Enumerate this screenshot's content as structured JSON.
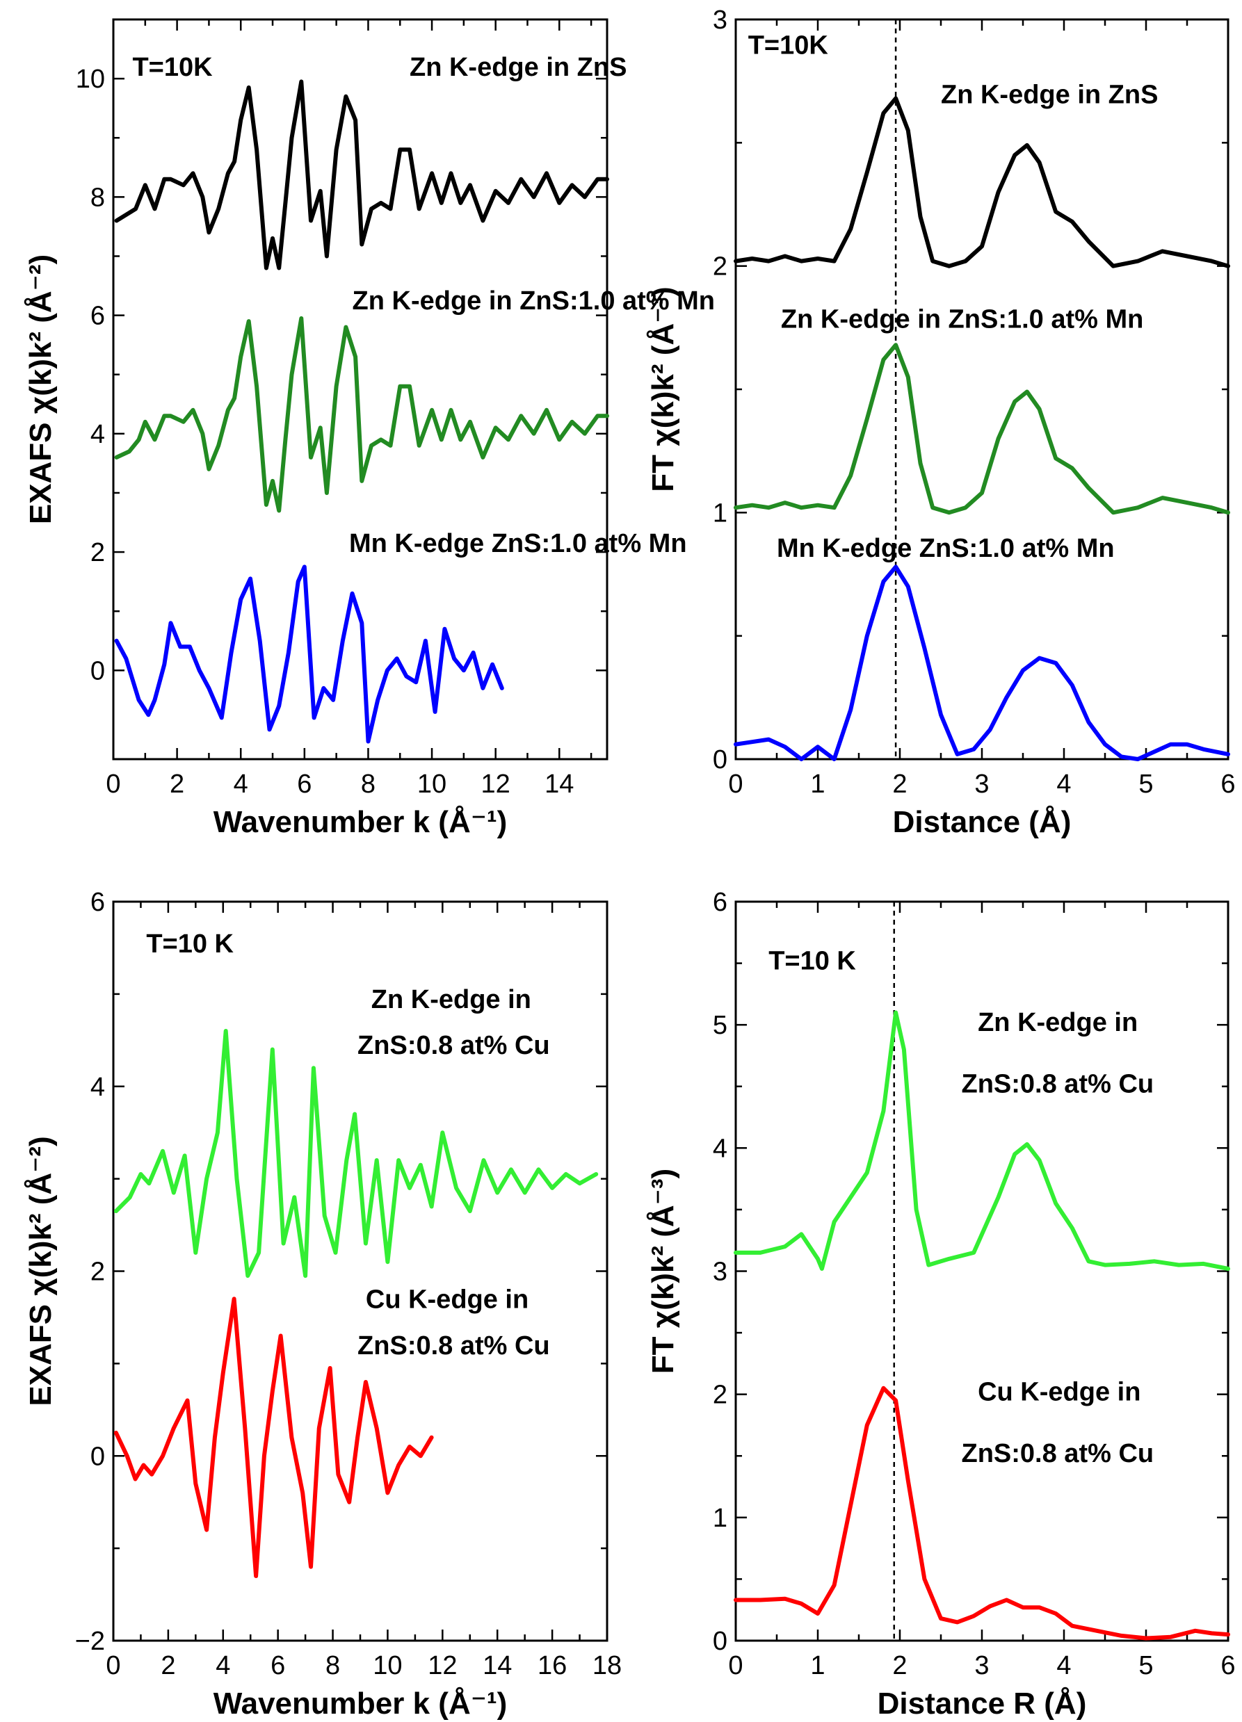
{
  "chart_data": [
    {
      "id": "a",
      "type": "line",
      "xlabel": "Wavenumber k (Å⁻¹)",
      "ylabel": "EXAFS χ(k)k² (Å⁻²)",
      "xlim": [
        0,
        15.5
      ],
      "ylim": [
        -1.5,
        11
      ],
      "xticks": [
        0,
        2,
        4,
        6,
        8,
        10,
        12,
        14
      ],
      "yticks": [
        0,
        2,
        4,
        6,
        8,
        10
      ],
      "guide_x": null,
      "annotations": [
        {
          "text": "T=10K",
          "x": 0.6,
          "y": 10.05
        },
        {
          "text": "Zn K-edge in ZnS",
          "x": 9.3,
          "y": 10.05
        },
        {
          "text": "Zn K-edge in ZnS:1.0 at% Mn",
          "x": 7.5,
          "y": 6.1
        },
        {
          "text": "Mn K-edge ZnS:1.0 at% Mn",
          "x": 7.4,
          "y": 2.0
        }
      ],
      "series": [
        {
          "name": "Zn K-edge in ZnS",
          "color": "#000000",
          "x": [
            0.1,
            0.7,
            1.0,
            1.3,
            1.6,
            1.8,
            2.2,
            2.5,
            2.8,
            3.0,
            3.3,
            3.6,
            3.8,
            4.0,
            4.25,
            4.5,
            4.8,
            5.0,
            5.2,
            5.4,
            5.6,
            5.9,
            6.2,
            6.5,
            6.7,
            7.0,
            7.3,
            7.6,
            7.8,
            8.1,
            8.4,
            8.7,
            9.0,
            9.3,
            9.6,
            10.0,
            10.3,
            10.6,
            10.9,
            11.2,
            11.6,
            12.0,
            12.4,
            12.8,
            13.2,
            13.6,
            14.0,
            14.4,
            14.8,
            15.2,
            15.5
          ],
          "y": [
            7.6,
            7.8,
            8.2,
            7.8,
            8.3,
            8.3,
            8.2,
            8.4,
            8.0,
            7.4,
            7.8,
            8.4,
            8.6,
            9.3,
            9.85,
            8.8,
            6.8,
            7.3,
            6.8,
            7.9,
            9.0,
            9.95,
            7.6,
            8.1,
            7.0,
            8.8,
            9.7,
            9.3,
            7.2,
            7.8,
            7.9,
            7.8,
            8.8,
            8.8,
            7.8,
            8.4,
            7.9,
            8.4,
            7.9,
            8.2,
            7.6,
            8.1,
            7.9,
            8.3,
            8.0,
            8.4,
            7.9,
            8.2,
            8.0,
            8.3,
            8.3
          ]
        },
        {
          "name": "Zn K-edge in ZnS:1.0 at% Mn",
          "color": "#228B22",
          "x": [
            0.1,
            0.5,
            0.8,
            1.0,
            1.3,
            1.6,
            1.8,
            2.2,
            2.5,
            2.8,
            3.0,
            3.3,
            3.6,
            3.8,
            4.0,
            4.25,
            4.5,
            4.8,
            5.0,
            5.2,
            5.4,
            5.6,
            5.9,
            6.2,
            6.5,
            6.7,
            7.0,
            7.3,
            7.6,
            7.8,
            8.1,
            8.4,
            8.7,
            9.0,
            9.3,
            9.6,
            10.0,
            10.3,
            10.6,
            10.9,
            11.2,
            11.6,
            12.0,
            12.4,
            12.8,
            13.2,
            13.6,
            14.0,
            14.4,
            14.8,
            15.2,
            15.5
          ],
          "y": [
            3.6,
            3.7,
            3.9,
            4.2,
            3.9,
            4.3,
            4.3,
            4.2,
            4.4,
            4.0,
            3.4,
            3.8,
            4.4,
            4.6,
            5.3,
            5.9,
            4.8,
            2.8,
            3.2,
            2.7,
            3.9,
            5.0,
            5.95,
            3.6,
            4.1,
            3.0,
            4.8,
            5.8,
            5.3,
            3.2,
            3.8,
            3.9,
            3.8,
            4.8,
            4.8,
            3.8,
            4.4,
            3.9,
            4.4,
            3.9,
            4.2,
            3.6,
            4.1,
            3.9,
            4.3,
            4.0,
            4.4,
            3.9,
            4.2,
            4.0,
            4.3,
            4.3
          ]
        },
        {
          "name": "Mn K-edge ZnS:1.0 at% Mn",
          "color": "#0000FF",
          "x": [
            0.1,
            0.4,
            0.8,
            1.1,
            1.3,
            1.6,
            1.8,
            2.1,
            2.4,
            2.7,
            3.0,
            3.4,
            3.7,
            4.0,
            4.3,
            4.6,
            4.9,
            5.2,
            5.5,
            5.8,
            6.0,
            6.3,
            6.6,
            6.9,
            7.2,
            7.5,
            7.8,
            8.0,
            8.3,
            8.6,
            8.9,
            9.2,
            9.5,
            9.8,
            10.1,
            10.4,
            10.7,
            11.0,
            11.3,
            11.6,
            11.9,
            12.2
          ],
          "y": [
            0.5,
            0.2,
            -0.5,
            -0.75,
            -0.5,
            0.1,
            0.8,
            0.4,
            0.4,
            0.0,
            -0.3,
            -0.8,
            0.3,
            1.2,
            1.55,
            0.5,
            -1.0,
            -0.6,
            0.3,
            1.5,
            1.75,
            -0.8,
            -0.3,
            -0.5,
            0.5,
            1.3,
            0.8,
            -1.2,
            -0.5,
            0.0,
            0.2,
            -0.1,
            -0.2,
            0.5,
            -0.7,
            0.7,
            0.2,
            0.0,
            0.3,
            -0.3,
            0.1,
            -0.3
          ]
        }
      ]
    },
    {
      "id": "b",
      "type": "line",
      "xlabel": "Distance (Å)",
      "ylabel": "FT χ(k)k² (Å⁻³)",
      "xlim": [
        0,
        6
      ],
      "ylim": [
        0,
        3
      ],
      "xticks": [
        0,
        1,
        2,
        3,
        4,
        5,
        6
      ],
      "yticks": [
        0,
        1,
        2,
        3
      ],
      "guide_x": 1.95,
      "annotations": [
        {
          "text": "T=10K",
          "x": 0.15,
          "y": 2.86
        },
        {
          "text": "Zn K-edge in ZnS",
          "x": 2.5,
          "y": 2.66
        },
        {
          "text": "Zn K-edge in ZnS:1.0 at% Mn",
          "x": 0.55,
          "y": 1.75
        },
        {
          "text": "Mn K-edge ZnS:1.0 at% Mn",
          "x": 0.5,
          "y": 0.82
        }
      ],
      "series": [
        {
          "name": "Zn K-edge in ZnS",
          "color": "#000000",
          "x": [
            0.0,
            0.2,
            0.4,
            0.6,
            0.8,
            1.0,
            1.2,
            1.4,
            1.6,
            1.8,
            1.95,
            2.1,
            2.25,
            2.4,
            2.6,
            2.8,
            3.0,
            3.2,
            3.4,
            3.55,
            3.7,
            3.9,
            4.1,
            4.3,
            4.6,
            4.9,
            5.2,
            5.5,
            5.8,
            6.0
          ],
          "y": [
            2.02,
            2.03,
            2.02,
            2.04,
            2.02,
            2.03,
            2.02,
            2.15,
            2.38,
            2.62,
            2.68,
            2.55,
            2.2,
            2.02,
            2.0,
            2.02,
            2.08,
            2.3,
            2.45,
            2.49,
            2.42,
            2.22,
            2.18,
            2.1,
            2.0,
            2.02,
            2.06,
            2.04,
            2.02,
            2.0
          ]
        },
        {
          "name": "Zn K-edge in ZnS:1.0 at% Mn",
          "color": "#228B22",
          "x": [
            0.0,
            0.2,
            0.4,
            0.6,
            0.8,
            1.0,
            1.2,
            1.4,
            1.6,
            1.8,
            1.95,
            2.1,
            2.25,
            2.4,
            2.6,
            2.8,
            3.0,
            3.2,
            3.4,
            3.55,
            3.7,
            3.9,
            4.1,
            4.3,
            4.6,
            4.9,
            5.2,
            5.5,
            5.8,
            6.0
          ],
          "y": [
            1.02,
            1.03,
            1.02,
            1.04,
            1.02,
            1.03,
            1.02,
            1.15,
            1.38,
            1.62,
            1.68,
            1.55,
            1.2,
            1.02,
            1.0,
            1.02,
            1.08,
            1.3,
            1.45,
            1.49,
            1.42,
            1.22,
            1.18,
            1.1,
            1.0,
            1.02,
            1.06,
            1.04,
            1.02,
            1.0
          ]
        },
        {
          "name": "Mn K-edge ZnS:1.0 at% Mn",
          "color": "#0000FF",
          "x": [
            0.0,
            0.2,
            0.4,
            0.6,
            0.8,
            1.0,
            1.2,
            1.4,
            1.6,
            1.8,
            1.95,
            2.1,
            2.3,
            2.5,
            2.7,
            2.9,
            3.1,
            3.3,
            3.5,
            3.7,
            3.9,
            4.1,
            4.3,
            4.5,
            4.7,
            4.9,
            5.1,
            5.3,
            5.5,
            5.7,
            6.0
          ],
          "y": [
            0.06,
            0.07,
            0.08,
            0.05,
            0.0,
            0.05,
            0.0,
            0.2,
            0.5,
            0.72,
            0.78,
            0.7,
            0.45,
            0.18,
            0.02,
            0.04,
            0.12,
            0.25,
            0.36,
            0.41,
            0.39,
            0.3,
            0.15,
            0.06,
            0.01,
            0.0,
            0.03,
            0.06,
            0.06,
            0.04,
            0.02
          ]
        }
      ]
    },
    {
      "id": "c",
      "type": "line",
      "xlabel": "Wavenumber k (Å⁻¹)",
      "ylabel": "EXAFS χ(k)k² (Å⁻²)",
      "xlim": [
        0,
        18
      ],
      "ylim": [
        -2,
        6
      ],
      "xticks": [
        0,
        2,
        4,
        6,
        8,
        10,
        12,
        14,
        16,
        18
      ],
      "yticks": [
        -2,
        0,
        2,
        4,
        6
      ],
      "guide_x": null,
      "annotations": [
        {
          "text": "T=10 K",
          "x": 1.2,
          "y": 5.45
        },
        {
          "text": "Zn K-edge in",
          "x": 9.4,
          "y": 4.85
        },
        {
          "text": "ZnS:0.8 at% Cu",
          "x": 8.9,
          "y": 4.35
        },
        {
          "text": "Cu K-edge in",
          "x": 9.2,
          "y": 1.6
        },
        {
          "text": "ZnS:0.8 at% Cu",
          "x": 8.9,
          "y": 1.1
        }
      ],
      "series": [
        {
          "name": "Zn K-edge in ZnS:0.8 at% Cu",
          "color": "#33EE33",
          "x": [
            0.1,
            0.6,
            1.0,
            1.3,
            1.8,
            2.2,
            2.6,
            3.0,
            3.4,
            3.8,
            4.1,
            4.5,
            4.9,
            5.3,
            5.8,
            6.2,
            6.6,
            7.0,
            7.3,
            7.7,
            8.1,
            8.5,
            8.8,
            9.2,
            9.6,
            10.0,
            10.4,
            10.8,
            11.2,
            11.6,
            12.0,
            12.5,
            13.0,
            13.5,
            14.0,
            14.5,
            15.0,
            15.5,
            16.0,
            16.5,
            17.0,
            17.6
          ],
          "y": [
            2.65,
            2.8,
            3.05,
            2.95,
            3.3,
            2.85,
            3.25,
            2.2,
            3.0,
            3.5,
            4.6,
            3.0,
            1.95,
            2.2,
            4.4,
            2.3,
            2.8,
            1.95,
            4.2,
            2.6,
            2.2,
            3.2,
            3.7,
            2.3,
            3.2,
            2.1,
            3.2,
            2.9,
            3.15,
            2.7,
            3.5,
            2.9,
            2.65,
            3.2,
            2.85,
            3.1,
            2.85,
            3.1,
            2.9,
            3.05,
            2.95,
            3.05
          ]
        },
        {
          "name": "Cu K-edge in ZnS:0.8 at% Cu",
          "color": "#FF0000",
          "x": [
            0.1,
            0.5,
            0.8,
            1.1,
            1.4,
            1.8,
            2.2,
            2.7,
            3.0,
            3.4,
            3.7,
            4.0,
            4.4,
            4.8,
            5.2,
            5.5,
            5.8,
            6.1,
            6.5,
            6.9,
            7.2,
            7.5,
            7.9,
            8.2,
            8.6,
            8.9,
            9.2,
            9.6,
            10.0,
            10.4,
            10.8,
            11.2,
            11.6
          ],
          "y": [
            0.25,
            0.0,
            -0.25,
            -0.1,
            -0.2,
            0.0,
            0.3,
            0.6,
            -0.3,
            -0.8,
            0.2,
            0.9,
            1.7,
            0.3,
            -1.3,
            0.0,
            0.7,
            1.3,
            0.2,
            -0.4,
            -1.2,
            0.3,
            0.95,
            -0.2,
            -0.5,
            0.2,
            0.8,
            0.3,
            -0.4,
            -0.1,
            0.1,
            0.0,
            0.2
          ]
        }
      ]
    },
    {
      "id": "d",
      "type": "line",
      "xlabel": "Distance R (Å)",
      "ylabel": "FT χ(k)k² (Å⁻³)",
      "xlim": [
        0,
        6
      ],
      "ylim": [
        0,
        6
      ],
      "xticks": [
        0,
        1,
        2,
        3,
        4,
        5,
        6
      ],
      "yticks": [
        0,
        1,
        2,
        3,
        4,
        5,
        6
      ],
      "guide_x": 1.93,
      "annotations": [
        {
          "text": "T=10 K",
          "x": 0.4,
          "y": 5.45
        },
        {
          "text": "Zn K-edge in",
          "x": 2.95,
          "y": 4.95
        },
        {
          "text": "ZnS:0.8 at% Cu",
          "x": 2.75,
          "y": 4.45
        },
        {
          "text": "Cu K-edge in",
          "x": 2.95,
          "y": 1.95
        },
        {
          "text": "ZnS:0.8 at% Cu",
          "x": 2.75,
          "y": 1.45
        }
      ],
      "series": [
        {
          "name": "Zn K-edge in ZnS:0.8 at% Cu",
          "color": "#33EE33",
          "x": [
            0.0,
            0.3,
            0.6,
            0.8,
            1.0,
            1.05,
            1.2,
            1.4,
            1.6,
            1.8,
            1.95,
            2.05,
            2.2,
            2.35,
            2.6,
            2.9,
            3.2,
            3.4,
            3.55,
            3.7,
            3.9,
            4.1,
            4.3,
            4.5,
            4.8,
            5.1,
            5.4,
            5.7,
            6.0
          ],
          "y": [
            3.15,
            3.15,
            3.2,
            3.3,
            3.1,
            3.02,
            3.4,
            3.6,
            3.8,
            4.3,
            5.1,
            4.8,
            3.5,
            3.05,
            3.1,
            3.15,
            3.6,
            3.95,
            4.03,
            3.9,
            3.55,
            3.35,
            3.08,
            3.05,
            3.06,
            3.08,
            3.05,
            3.06,
            3.02
          ]
        },
        {
          "name": "Cu K-edge in ZnS:0.8 at% Cu",
          "color": "#FF0000",
          "x": [
            0.0,
            0.3,
            0.6,
            0.8,
            1.0,
            1.2,
            1.4,
            1.6,
            1.8,
            1.95,
            2.1,
            2.3,
            2.5,
            2.7,
            2.9,
            3.1,
            3.3,
            3.5,
            3.7,
            3.9,
            4.1,
            4.4,
            4.7,
            5.0,
            5.3,
            5.6,
            5.8,
            6.0
          ],
          "y": [
            0.33,
            0.33,
            0.34,
            0.3,
            0.22,
            0.45,
            1.1,
            1.75,
            2.05,
            1.95,
            1.3,
            0.5,
            0.18,
            0.15,
            0.2,
            0.28,
            0.33,
            0.27,
            0.27,
            0.22,
            0.12,
            0.08,
            0.04,
            0.02,
            0.03,
            0.08,
            0.06,
            0.05
          ]
        }
      ]
    }
  ]
}
